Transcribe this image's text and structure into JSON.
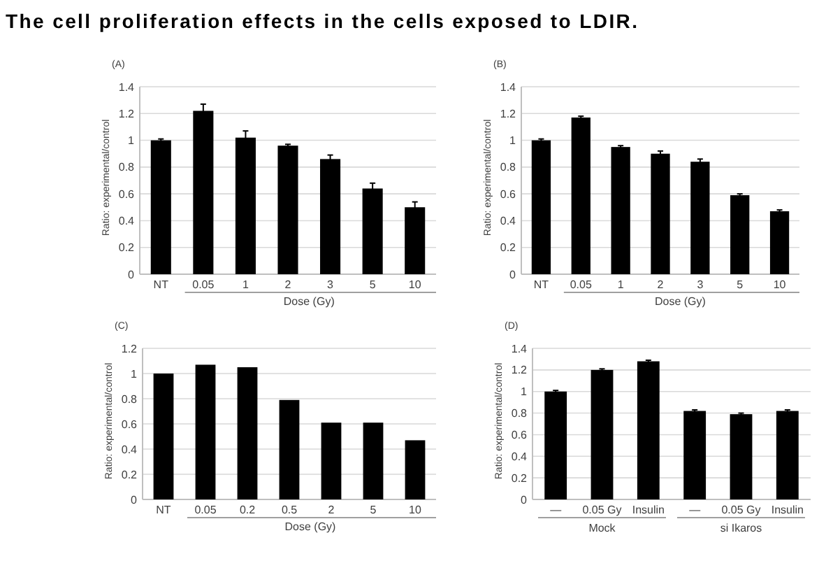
{
  "chart_data": [
    {
      "type": "bar",
      "title": "The cell proliferation effects in the cells exposed to LDIR.",
      "subtitle": "(A)",
      "xlabel": "Dose (Gy)",
      "ylabel": "Ratio: experimental/control",
      "categories": [
        "NT",
        "0.05",
        "1",
        "2",
        "3",
        "5",
        "10"
      ],
      "values": [
        1.0,
        1.22,
        1.02,
        0.96,
        0.86,
        0.64,
        0.5
      ],
      "errors": [
        0.01,
        0.05,
        0.05,
        0.01,
        0.03,
        0.04,
        0.04
      ],
      "color": "#000000",
      "ylim": [
        0,
        1.4
      ],
      "yticks": [
        0,
        0.2,
        0.4,
        0.6,
        0.8,
        1,
        1.2,
        1.4
      ],
      "grid": "y"
    },
    {
      "type": "bar",
      "subtitle": "(B)",
      "xlabel": "Dose (Gy)",
      "ylabel": "Ratio: experimental/control",
      "categories": [
        "NT",
        "0.05",
        "1",
        "2",
        "3",
        "5",
        "10"
      ],
      "values": [
        1.0,
        1.17,
        0.95,
        0.9,
        0.84,
        0.59,
        0.47
      ],
      "errors": [
        0.01,
        0.01,
        0.01,
        0.02,
        0.02,
        0.01,
        0.01
      ],
      "color": "#000000",
      "ylim": [
        0,
        1.4
      ],
      "yticks": [
        0,
        0.2,
        0.4,
        0.6,
        0.8,
        1,
        1.2,
        1.4
      ],
      "grid": "y"
    },
    {
      "type": "bar",
      "subtitle": "(C)",
      "xlabel": "Dose (Gy)",
      "ylabel": "Ratio: experimental/control",
      "categories": [
        "NT",
        "0.05",
        "0.2",
        "0.5",
        "2",
        "5",
        "10"
      ],
      "values": [
        1.0,
        1.07,
        1.05,
        0.79,
        0.61,
        0.61,
        0.47
      ],
      "color": "#000000",
      "ylim": [
        0,
        1.2
      ],
      "yticks": [
        0,
        0.2,
        0.4,
        0.6,
        0.8,
        1,
        1.2
      ],
      "grid": "y"
    },
    {
      "type": "bar",
      "subtitle": "(D)",
      "ylabel": "Ratio: experimental/control",
      "categories": [
        "—",
        "0.05 Gy",
        "Insulin",
        "—",
        "0.05 Gy",
        "Insulin"
      ],
      "values": [
        1.0,
        1.2,
        1.28,
        0.82,
        0.79,
        0.82
      ],
      "errors": [
        0.01,
        0.01,
        0.01,
        0.01,
        0.01,
        0.01
      ],
      "color": "#000000",
      "ylim": [
        0,
        1.4
      ],
      "yticks": [
        0,
        0.2,
        0.4,
        0.6,
        0.8,
        1,
        1.2,
        1.4
      ],
      "grid": "y",
      "annotations": [
        "Mock",
        "si Ikaros"
      ]
    }
  ]
}
